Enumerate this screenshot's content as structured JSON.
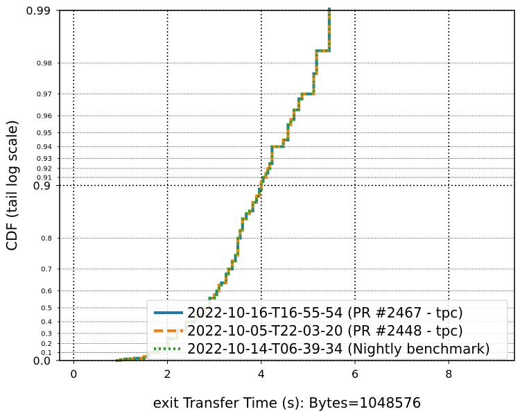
{
  "chart_data": {
    "type": "line",
    "title": "",
    "xlabel": "exit Transfer Time (s): Bytes=1048576",
    "ylabel": "CDF (tail log scale)",
    "xlim": [
      -0.3,
      9.4
    ],
    "y_scale": "tail-log",
    "grid": true,
    "legend_position": "bottom-right",
    "x_ticks": [
      {
        "value": 0,
        "label": "0"
      },
      {
        "value": 2,
        "label": "2"
      },
      {
        "value": 4,
        "label": "4"
      },
      {
        "value": 6,
        "label": "6"
      },
      {
        "value": 8,
        "label": "8"
      }
    ],
    "y_major_ticks": [
      {
        "value": 0.0,
        "label": "0.0"
      },
      {
        "value": 0.9,
        "label": "0.9"
      },
      {
        "value": 0.99,
        "label": "0.99"
      }
    ],
    "y_minor_ticks": [
      {
        "value": 0.1,
        "label": "0.1"
      },
      {
        "value": 0.2,
        "label": "0.2"
      },
      {
        "value": 0.3,
        "label": "0.3"
      },
      {
        "value": 0.4,
        "label": "0.4"
      },
      {
        "value": 0.5,
        "label": "0.5"
      },
      {
        "value": 0.6,
        "label": "0.6"
      },
      {
        "value": 0.7,
        "label": "0.7"
      },
      {
        "value": 0.8,
        "label": "0.8"
      },
      {
        "value": 0.91,
        "label": "0.91"
      },
      {
        "value": 0.92,
        "label": "0.92"
      },
      {
        "value": 0.93,
        "label": "0.93"
      },
      {
        "value": 0.94,
        "label": "0.94"
      },
      {
        "value": 0.95,
        "label": "0.95"
      },
      {
        "value": 0.96,
        "label": "0.96"
      },
      {
        "value": 0.97,
        "label": "0.97"
      },
      {
        "value": 0.98,
        "label": "0.98"
      }
    ],
    "series": [
      {
        "name": "2022-10-16-T16-55-54 (PR #2467 - tpc)",
        "color": "#1f77b4",
        "style": "solid",
        "x": [
          0.9,
          1.0,
          1.1,
          1.3,
          1.5,
          1.6,
          1.8,
          2.0,
          2.2,
          2.4,
          2.6,
          2.8,
          2.9,
          3.0,
          3.05,
          3.1,
          3.15,
          3.25,
          3.3,
          3.38,
          3.45,
          3.5,
          3.55,
          3.6,
          3.68,
          3.75,
          3.82,
          3.9,
          3.96,
          4.0,
          4.04,
          4.1,
          4.14,
          4.18,
          4.23,
          4.4,
          4.47,
          4.57,
          4.63,
          4.7,
          4.8,
          4.87,
          5.05,
          5.12,
          5.18,
          5.3,
          5.45
        ],
        "y": [
          0.0,
          0.01,
          0.02,
          0.03,
          0.05,
          0.1,
          0.15,
          0.25,
          0.33,
          0.4,
          0.45,
          0.5,
          0.56,
          0.58,
          0.6,
          0.63,
          0.64,
          0.68,
          0.7,
          0.73,
          0.75,
          0.8,
          0.82,
          0.845,
          0.855,
          0.86,
          0.875,
          0.885,
          0.895,
          0.905,
          0.91,
          0.915,
          0.92,
          0.925,
          0.94,
          0.94,
          0.945,
          0.955,
          0.958,
          0.963,
          0.968,
          0.97,
          0.97,
          0.977,
          0.983,
          0.983,
          0.99
        ]
      },
      {
        "name": "2022-10-05-T22-03-20 (PR #2448 - tpc)",
        "color": "#ff7f0e",
        "style": "dashed",
        "x": [
          0.9,
          1.0,
          1.1,
          1.3,
          1.5,
          1.6,
          1.8,
          2.0,
          2.2,
          2.4,
          2.6,
          2.8,
          2.9,
          3.0,
          3.05,
          3.1,
          3.15,
          3.25,
          3.3,
          3.38,
          3.45,
          3.5,
          3.55,
          3.6,
          3.68,
          3.75,
          3.82,
          3.9,
          3.96,
          4.0,
          4.04,
          4.1,
          4.14,
          4.18,
          4.23,
          4.4,
          4.47,
          4.57,
          4.63,
          4.7,
          4.8,
          4.87,
          5.05,
          5.12,
          5.18,
          5.3,
          5.45
        ],
        "y": [
          0.0,
          0.01,
          0.02,
          0.03,
          0.05,
          0.1,
          0.15,
          0.25,
          0.33,
          0.4,
          0.45,
          0.5,
          0.56,
          0.58,
          0.6,
          0.63,
          0.64,
          0.68,
          0.7,
          0.73,
          0.75,
          0.8,
          0.82,
          0.845,
          0.855,
          0.86,
          0.875,
          0.885,
          0.895,
          0.905,
          0.91,
          0.915,
          0.92,
          0.925,
          0.94,
          0.94,
          0.945,
          0.955,
          0.958,
          0.963,
          0.968,
          0.97,
          0.97,
          0.977,
          0.983,
          0.983,
          0.99
        ]
      },
      {
        "name": "2022-10-14-T06-39-34 (Nightly benchmark)",
        "color": "#2ca02c",
        "style": "dotted",
        "x": [
          0.9,
          1.0,
          1.1,
          1.3,
          1.5,
          1.6,
          1.8,
          2.0,
          2.2,
          2.4,
          2.6,
          2.8,
          2.9,
          3.0,
          3.05,
          3.1,
          3.15,
          3.25,
          3.3,
          3.38,
          3.45,
          3.5,
          3.55,
          3.6,
          3.68,
          3.75,
          3.82,
          3.9,
          3.96,
          4.0,
          4.04,
          4.1,
          4.14,
          4.18,
          4.23,
          4.4,
          4.47,
          4.57,
          4.63,
          4.7,
          4.8,
          4.87,
          5.05,
          5.12,
          5.18,
          5.3,
          5.45
        ],
        "y": [
          0.0,
          0.01,
          0.02,
          0.03,
          0.05,
          0.1,
          0.15,
          0.25,
          0.33,
          0.4,
          0.45,
          0.5,
          0.56,
          0.58,
          0.6,
          0.63,
          0.64,
          0.68,
          0.7,
          0.73,
          0.75,
          0.8,
          0.82,
          0.845,
          0.855,
          0.86,
          0.875,
          0.885,
          0.895,
          0.905,
          0.91,
          0.915,
          0.92,
          0.925,
          0.94,
          0.94,
          0.945,
          0.955,
          0.958,
          0.963,
          0.968,
          0.97,
          0.97,
          0.977,
          0.983,
          0.983,
          0.99
        ]
      }
    ]
  }
}
